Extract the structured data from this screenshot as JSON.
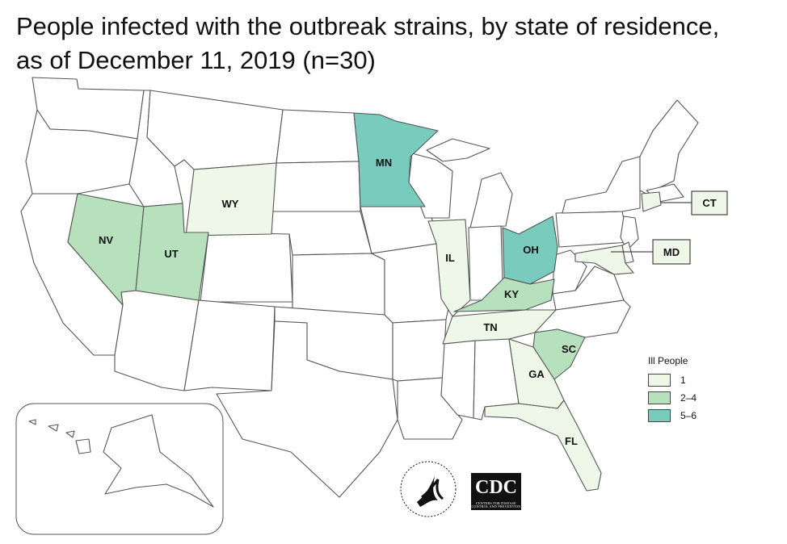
{
  "title": {
    "line1": "People infected with the outbreak strains, by state of residence,",
    "line2": "as of December 11, 2019 (n=30)"
  },
  "colors": {
    "none": "#ffffff",
    "bin1": "#eef7e8",
    "bin2": "#b7e1bd",
    "bin3": "#79cbbd",
    "border": "#555555"
  },
  "legend": {
    "title": "Ill People",
    "items": [
      {
        "label": "1",
        "color": "#eef7e8"
      },
      {
        "label": "2–4",
        "color": "#b7e1bd"
      },
      {
        "label": "5–6",
        "color": "#79cbbd"
      }
    ]
  },
  "states": [
    {
      "code": "WY",
      "label": "WY",
      "bin": "1"
    },
    {
      "code": "NV",
      "label": "NV",
      "bin": "2–4"
    },
    {
      "code": "UT",
      "label": "UT",
      "bin": "2–4"
    },
    {
      "code": "MN",
      "label": "MN",
      "bin": "5–6"
    },
    {
      "code": "IL",
      "label": "IL",
      "bin": "1"
    },
    {
      "code": "OH",
      "label": "OH",
      "bin": "5–6"
    },
    {
      "code": "KY",
      "label": "KY",
      "bin": "2–4"
    },
    {
      "code": "TN",
      "label": "TN",
      "bin": "1"
    },
    {
      "code": "SC",
      "label": "SC",
      "bin": "2–4"
    },
    {
      "code": "GA",
      "label": "GA",
      "bin": "1"
    },
    {
      "code": "FL",
      "label": "FL",
      "bin": "1"
    },
    {
      "code": "CT",
      "label": "CT",
      "bin": "1"
    },
    {
      "code": "MD",
      "label": "MD",
      "bin": "1"
    }
  ],
  "logos": {
    "cdc": "CDC",
    "cdc_sub": "CENTERS FOR DISEASE CONTROL AND PREVENTION",
    "hhs": "DEPARTMENT OF HEALTH & HUMAN SERVICES USA"
  }
}
